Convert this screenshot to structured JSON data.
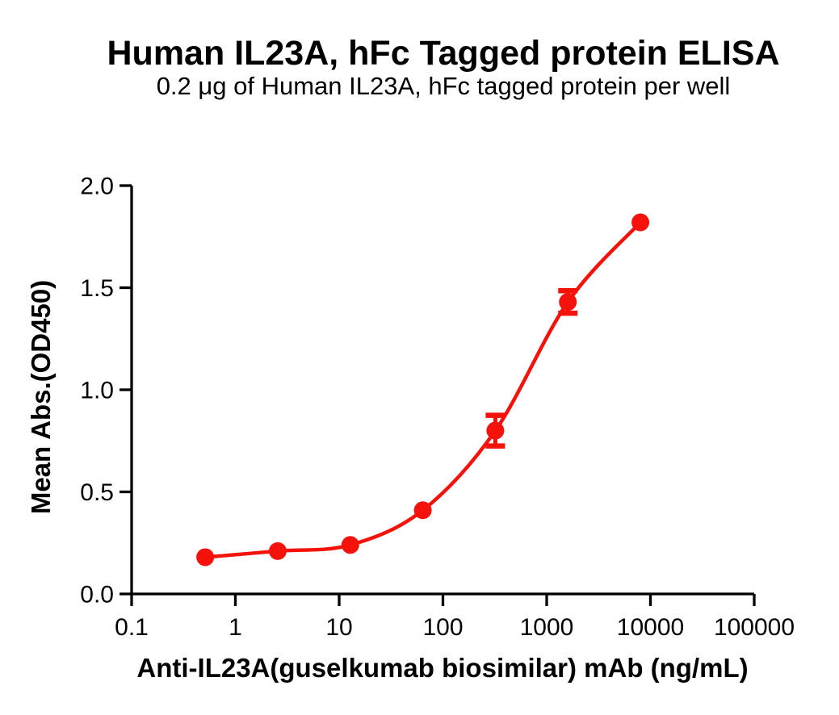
{
  "page": {
    "background_color": "#FFFFFF",
    "accent_color": "#F5120B",
    "axis_color": "#000000"
  },
  "chart_data": {
    "type": "scatter",
    "title": "Human IL23A, hFc Tagged protein ELISA",
    "subtitle": "0.2 μg of Human IL23A, hFc tagged protein per well",
    "xlabel": "Anti-IL23A(guselkumab biosimilar) mAb (ng/mL)",
    "ylabel": "Mean Abs.(OD450)",
    "x_scale": "log10",
    "xlim": [
      0.1,
      100000
    ],
    "ylim": [
      0.0,
      2.0
    ],
    "x_ticks": [
      0.1,
      1,
      10,
      100,
      1000,
      10000,
      100000
    ],
    "x_tick_labels": [
      "0.1",
      "1",
      "10",
      "100",
      "1000",
      "10000",
      "100000"
    ],
    "y_ticks": [
      0.0,
      0.5,
      1.0,
      1.5,
      2.0
    ],
    "y_tick_labels": [
      "0.0",
      "0.5",
      "1.0",
      "1.5",
      "2.0"
    ],
    "grid": false,
    "legend": null,
    "series": [
      {
        "name": "Anti-IL23A(guselkumab biosimilar) mAb",
        "x": [
          0.512,
          2.56,
          12.8,
          64,
          320,
          1600,
          8000
        ],
        "y": [
          0.18,
          0.21,
          0.24,
          0.41,
          0.8,
          1.43,
          1.82
        ],
        "yerr": [
          0,
          0,
          0,
          0,
          0.075,
          0.055,
          0
        ],
        "color": "#F5120B",
        "marker": "circle",
        "curve": "4PL-sigmoid-fit"
      }
    ]
  }
}
